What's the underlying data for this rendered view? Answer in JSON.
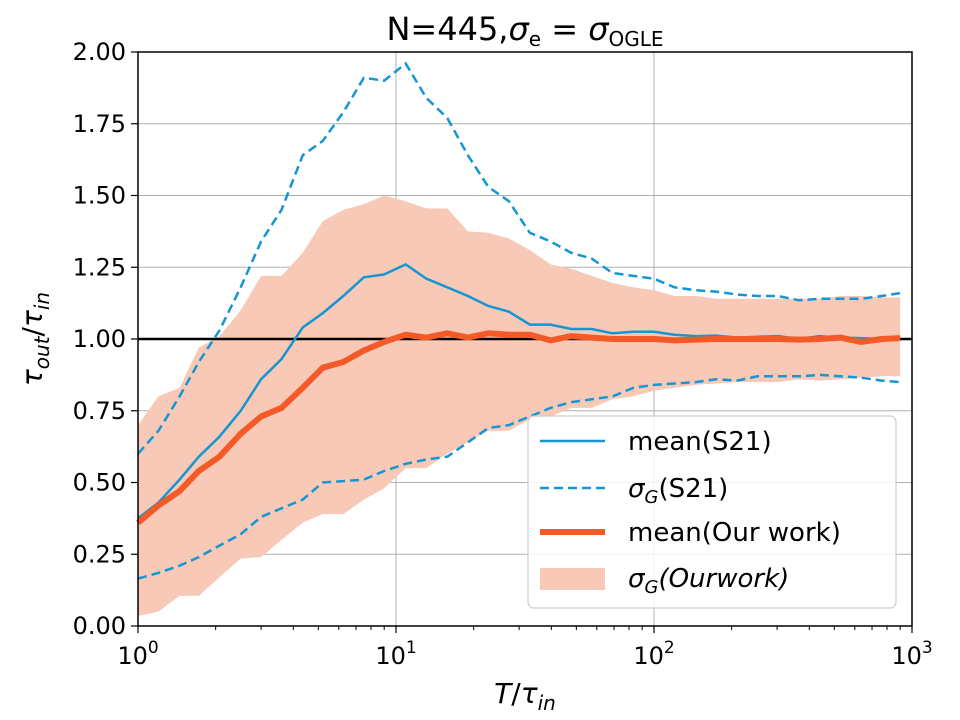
{
  "chart_data": {
    "type": "line",
    "title": "N=445,σe = σOGLE",
    "title_parts": {
      "main": "N=445,",
      "sigma": "σ",
      "sub_e": "e",
      "eq": " = ",
      "sigma2": "σ",
      "sub_ogle": "OGLE"
    },
    "xlabel_parts": {
      "T": "T",
      "slash": "/",
      "tau": "τ",
      "sub": "in"
    },
    "ylabel_parts": {
      "tau1": "τ",
      "sub1": "out",
      "slash": "/",
      "tau2": "τ",
      "sub2": "in"
    },
    "xscale": "log",
    "xlim": [
      1,
      1000
    ],
    "ylim": [
      0.0,
      2.0
    ],
    "grid": true,
    "legend_placement": "lower-right",
    "x_tick_labels": [
      {
        "value": 1,
        "base": "10",
        "exp": "0"
      },
      {
        "value": 10,
        "base": "10",
        "exp": "1"
      },
      {
        "value": 100,
        "base": "10",
        "exp": "2"
      },
      {
        "value": 1000,
        "base": "10",
        "exp": "3"
      }
    ],
    "y_ticks": [
      "0.00",
      "0.25",
      "0.50",
      "0.75",
      "1.00",
      "1.25",
      "1.50",
      "1.75",
      "2.00"
    ],
    "reference_line": {
      "y": 1.0,
      "color": "#000000"
    },
    "x": [
      1.0,
      1.2,
      1.45,
      1.72,
      2.07,
      2.5,
      3.0,
      3.6,
      4.35,
      5.2,
      6.25,
      7.5,
      9.0,
      10.9,
      13.1,
      15.8,
      19.0,
      22.8,
      27.4,
      33.0,
      39.7,
      47.8,
      57.4,
      69.0,
      83.1,
      100,
      120,
      145,
      174,
      210,
      252,
      303,
      365,
      439,
      528,
      635,
      764,
      900
    ],
    "series": [
      {
        "name_parts": {
          "text": "mean(S21)"
        },
        "color": "#1596d2",
        "style": "solid",
        "values": [
          0.375,
          0.43,
          0.51,
          0.59,
          0.66,
          0.75,
          0.86,
          0.93,
          1.04,
          1.09,
          1.15,
          1.215,
          1.225,
          1.26,
          1.21,
          1.18,
          1.15,
          1.115,
          1.095,
          1.05,
          1.05,
          1.035,
          1.035,
          1.02,
          1.025,
          1.025,
          1.015,
          1.01,
          1.012,
          1.005,
          1.008,
          1.01,
          1.0,
          1.01,
          1.005,
          1.003,
          1.0,
          1.0
        ]
      },
      {
        "name_parts": {
          "sigma": "σ",
          "sub": "G",
          "text": "(S21)"
        },
        "color": "#1596d2",
        "style": "dashed",
        "upper": [
          0.6,
          0.68,
          0.8,
          0.92,
          1.03,
          1.18,
          1.34,
          1.45,
          1.64,
          1.69,
          1.79,
          1.91,
          1.9,
          1.96,
          1.84,
          1.77,
          1.64,
          1.53,
          1.48,
          1.37,
          1.34,
          1.3,
          1.28,
          1.23,
          1.22,
          1.21,
          1.18,
          1.17,
          1.165,
          1.155,
          1.15,
          1.15,
          1.135,
          1.14,
          1.14,
          1.14,
          1.15,
          1.16
        ],
        "lower": [
          0.165,
          0.185,
          0.21,
          0.24,
          0.28,
          0.32,
          0.38,
          0.41,
          0.44,
          0.5,
          0.505,
          0.51,
          0.54,
          0.565,
          0.58,
          0.59,
          0.64,
          0.69,
          0.7,
          0.73,
          0.76,
          0.78,
          0.79,
          0.8,
          0.83,
          0.84,
          0.845,
          0.85,
          0.86,
          0.855,
          0.87,
          0.87,
          0.87,
          0.875,
          0.87,
          0.865,
          0.855,
          0.85
        ]
      },
      {
        "name_parts": {
          "text": "mean(Our work)"
        },
        "color": "#f45a28",
        "style": "solid-thick",
        "values": [
          0.36,
          0.42,
          0.47,
          0.54,
          0.59,
          0.67,
          0.73,
          0.76,
          0.83,
          0.9,
          0.92,
          0.96,
          0.99,
          1.015,
          1.005,
          1.02,
          1.005,
          1.02,
          1.015,
          1.015,
          0.995,
          1.01,
          1.005,
          1.0,
          1.0,
          1.0,
          0.995,
          0.998,
          1.0,
          1.0,
          1.0,
          1.0,
          0.998,
          1.0,
          1.005,
          0.99,
          1.0,
          1.003
        ]
      },
      {
        "name_parts": {
          "sigma": "σ",
          "sub": "G",
          "text": "(Ourwork)"
        },
        "color": "#f9c9b8",
        "style": "band",
        "upper": [
          0.7,
          0.8,
          0.83,
          0.97,
          1.01,
          1.1,
          1.22,
          1.22,
          1.3,
          1.41,
          1.45,
          1.47,
          1.5,
          1.48,
          1.455,
          1.455,
          1.375,
          1.37,
          1.35,
          1.31,
          1.26,
          1.245,
          1.22,
          1.195,
          1.18,
          1.17,
          1.15,
          1.15,
          1.14,
          1.14,
          1.14,
          1.14,
          1.14,
          1.14,
          1.15,
          1.15,
          1.145,
          1.145
        ],
        "lower": [
          0.035,
          0.05,
          0.105,
          0.105,
          0.17,
          0.235,
          0.24,
          0.3,
          0.36,
          0.39,
          0.39,
          0.44,
          0.48,
          0.55,
          0.55,
          0.6,
          0.64,
          0.68,
          0.68,
          0.72,
          0.73,
          0.76,
          0.76,
          0.79,
          0.8,
          0.82,
          0.83,
          0.84,
          0.845,
          0.85,
          0.85,
          0.85,
          0.86,
          0.855,
          0.86,
          0.865,
          0.87,
          0.87
        ]
      }
    ]
  }
}
